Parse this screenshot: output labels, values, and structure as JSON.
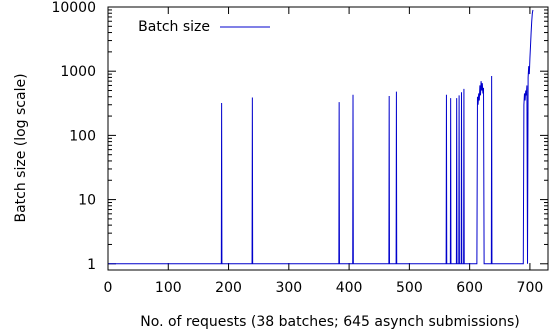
{
  "chart_data": {
    "type": "line",
    "title": "",
    "xlabel": "No. of requests (38 batches; 645 asynch submissions)",
    "ylabel": "Batch size (log scale)",
    "xlim": [
      0,
      730
    ],
    "ylim": [
      0.8,
      10000
    ],
    "yscale": "log",
    "grid": false,
    "legend": "top-left",
    "xticks": [
      0,
      100,
      200,
      300,
      400,
      500,
      600,
      700
    ],
    "xtick_labels": [
      "0",
      "100",
      "200",
      "300",
      "400",
      "500",
      "600",
      "700"
    ],
    "yticks": [
      1,
      10,
      100,
      1000,
      10000
    ],
    "ytick_labels": [
      "1",
      "10",
      "100",
      "1000",
      "10000"
    ],
    "series": [
      {
        "name": "Batch size",
        "color": "#0000cc",
        "x": [
          0,
          188,
          188.5,
          189,
          190,
          239,
          239.5,
          240,
          241,
          383,
          383.5,
          384,
          385,
          406,
          406.5,
          407,
          408,
          466,
          466.5,
          467,
          468,
          478,
          478.5,
          479,
          480,
          561,
          561.5,
          562,
          563,
          568,
          568.5,
          569,
          570,
          578,
          578.5,
          579,
          582,
          582.5,
          583,
          584,
          586,
          586.5,
          587,
          588,
          590,
          590.5,
          591,
          592,
          612,
          613,
          614,
          615,
          616,
          617,
          618,
          619,
          620,
          621,
          622,
          623,
          624,
          625,
          626,
          627,
          636,
          636.5,
          637,
          638,
          689,
          690,
          691,
          692,
          693,
          694,
          695,
          696,
          697,
          698,
          699,
          700,
          701,
          702,
          703,
          704,
          705
        ],
        "y": [
          1,
          1,
          320,
          1,
          1,
          1,
          390,
          1,
          1,
          1,
          330,
          1,
          1,
          1,
          430,
          1,
          1,
          1,
          410,
          1,
          1,
          1,
          480,
          1,
          1,
          1,
          430,
          1,
          1,
          1,
          380,
          1,
          1,
          1,
          380,
          1,
          1,
          420,
          1,
          1,
          1,
          470,
          1,
          1,
          1,
          530,
          1,
          1,
          1,
          400,
          300,
          450,
          350,
          600,
          420,
          700,
          500,
          650,
          450,
          550,
          1,
          1,
          1,
          1,
          1,
          840,
          1,
          1,
          1,
          300,
          450,
          350,
          500,
          420,
          600,
          1,
          800,
          1200,
          900,
          1600,
          2500,
          4000,
          6000,
          8000,
          9000
        ]
      }
    ]
  }
}
